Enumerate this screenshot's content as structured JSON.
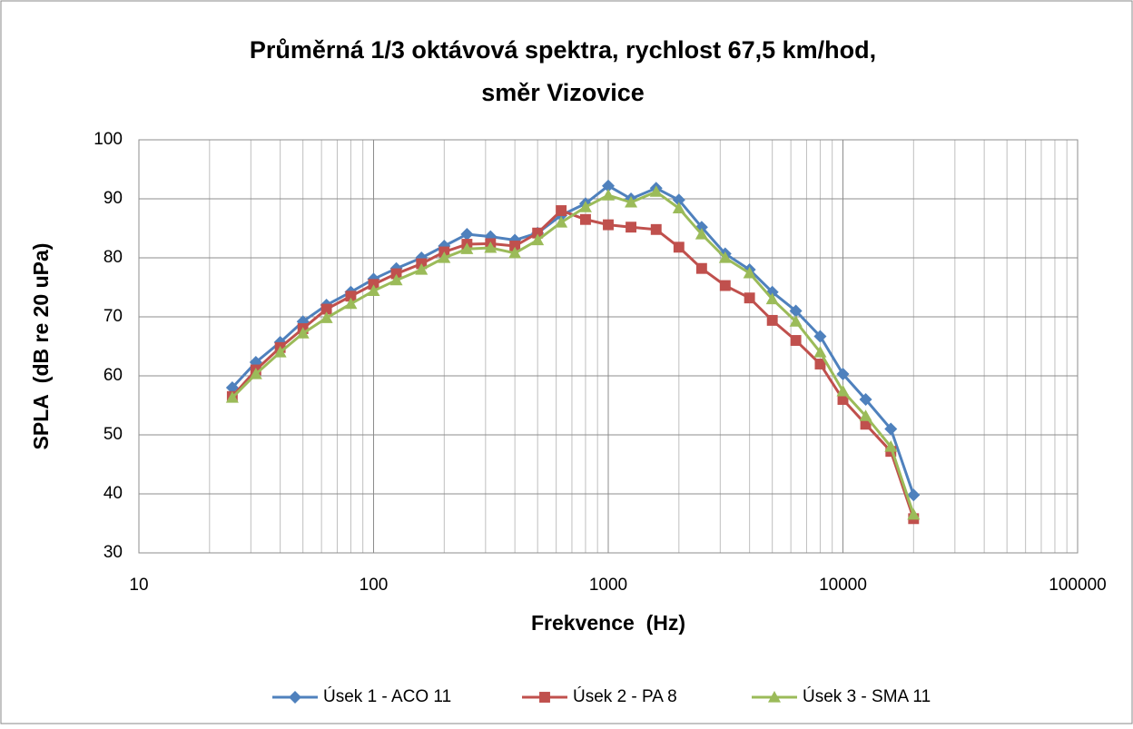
{
  "chart_data": {
    "type": "line",
    "title": [
      "Průměrná 1/3 oktávová spektra, rychlost 67,5 km/hod,",
      "směr Vizovice"
    ],
    "x_label": "Frekvence  (Hz)",
    "y_label": "SPLA  (dB re 20 uPa)",
    "x": [
      25,
      31.5,
      40,
      50,
      63,
      80,
      100,
      125,
      160,
      200,
      250,
      315,
      400,
      500,
      630,
      800,
      1000,
      1250,
      1600,
      2000,
      2500,
      3150,
      4000,
      5000,
      6300,
      8000,
      10000,
      12500,
      16000,
      20000
    ],
    "series": [
      {
        "name": "Úsek 1 - ACO 11",
        "color": "#4f81bd",
        "marker": "diamond",
        "values": [
          58,
          62.3,
          65.7,
          69.2,
          72,
          74.2,
          76.4,
          78.2,
          80,
          82,
          84,
          83.6,
          83,
          84.2,
          87.2,
          89.2,
          92.2,
          90,
          91.8,
          89.8,
          85.2,
          80.7,
          78,
          74.2,
          71,
          66.7,
          60.3,
          56,
          51,
          39.8
        ]
      },
      {
        "name": "Úsek 2 - PA 8",
        "color": "#c0504d",
        "marker": "square",
        "values": [
          56.5,
          61,
          64.8,
          68,
          71.3,
          73.5,
          75.5,
          77.3,
          79,
          81,
          82.3,
          82.4,
          82,
          84.2,
          88,
          86.5,
          85.6,
          85.2,
          84.8,
          81.8,
          78.2,
          75.3,
          73.2,
          69.4,
          66,
          62,
          56,
          51.8,
          47.2,
          35.8
        ]
      },
      {
        "name": "Úsek 3 - SMA 11",
        "color": "#9bbb59",
        "marker": "triangle",
        "values": [
          56.3,
          60.3,
          64,
          67.2,
          69.8,
          72.2,
          74.4,
          76.2,
          78,
          80,
          81.5,
          81.7,
          80.8,
          83,
          86,
          88.6,
          90.6,
          89.4,
          91.2,
          88.4,
          84,
          80,
          77.4,
          73,
          69.2,
          64,
          57.4,
          53.2,
          48,
          36.5
        ]
      }
    ],
    "xlim": [
      10,
      100000
    ],
    "xticks": [
      10,
      100,
      1000,
      10000,
      100000
    ],
    "x_log": true,
    "ylim": [
      30,
      100
    ],
    "yticks": [
      30,
      40,
      50,
      60,
      70,
      80,
      90,
      100
    ],
    "grid": true,
    "minor_grid": true,
    "legend": "bottom"
  }
}
